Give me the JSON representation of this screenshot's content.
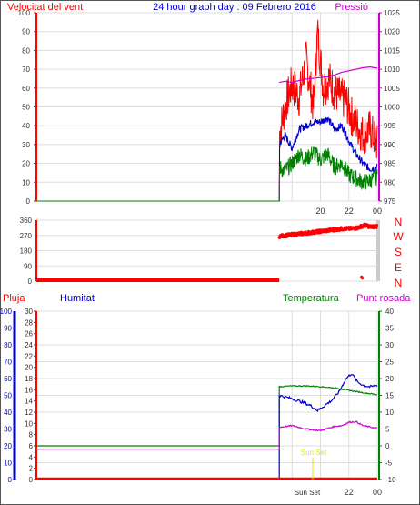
{
  "header": {
    "title": "24 hour graph day : 09 Febrero 2016",
    "wind_label": "Velocitat del vent",
    "pressure_label": "Pressió"
  },
  "panel2": {
    "compass_labels": [
      "N",
      "W",
      "S",
      "E",
      "N"
    ]
  },
  "panel3": {
    "rain_label": "Pluja",
    "humidity_label": "Humitat",
    "temperature_label": "Temperatura",
    "dewpoint_label": "Punt rosada",
    "sunset_annotation": "Sun Set"
  },
  "colors": {
    "wind_gust": "#ff0000",
    "wind_avg": "#008000",
    "wind_axis": "#ff0000",
    "pressure": "#cc00cc",
    "title": "#0000cc",
    "humidity": "#0000cc",
    "temperature": "#008000",
    "dewpoint": "#cc00cc",
    "rain": "#ff0000",
    "direction": "#ff0000",
    "sunset": "#e6e600"
  },
  "chart_data": [
    {
      "type": "line",
      "x_ticks": [
        "20",
        "22",
        "00"
      ],
      "y_left": {
        "label": "Velocitat del vent",
        "range": [
          0,
          100
        ],
        "ticks": [
          0,
          10,
          20,
          30,
          40,
          50,
          60,
          70,
          80,
          90,
          100
        ]
      },
      "y_right": {
        "label": "Pressió",
        "range": [
          975,
          1025
        ],
        "ticks": [
          975,
          980,
          985,
          990,
          995,
          1000,
          1005,
          1010,
          1015,
          1020,
          1025
        ]
      },
      "grid": true,
      "series": [
        {
          "name": "Velocitat del vent",
          "axis": "left",
          "points": [
            [
              0,
              0
            ],
            [
              17.1,
              0
            ],
            [
              17.1,
              35
            ],
            [
              17.5,
              50
            ],
            [
              18.0,
              62
            ],
            [
              18.5,
              55
            ],
            [
              19.0,
              75
            ],
            [
              19.5,
              50
            ],
            [
              19.8,
              90
            ],
            [
              20.2,
              60
            ],
            [
              20.6,
              65
            ],
            [
              21.0,
              58
            ],
            [
              21.4,
              55
            ],
            [
              21.8,
              53
            ],
            [
              22.2,
              45
            ],
            [
              22.6,
              40
            ],
            [
              23.0,
              35
            ],
            [
              23.5,
              38
            ],
            [
              24.0,
              30
            ]
          ]
        },
        {
          "axis": "left",
          "points": [
            [
              0,
              0
            ],
            [
              17.1,
              0
            ],
            [
              17.1,
              30
            ],
            [
              17.5,
              35
            ],
            [
              18.0,
              28
            ],
            [
              18.5,
              38
            ],
            [
              19.0,
              40
            ],
            [
              19.5,
              42
            ],
            [
              20.0,
              42
            ],
            [
              20.5,
              44
            ],
            [
              21.0,
              38
            ],
            [
              21.5,
              40
            ],
            [
              22.0,
              32
            ],
            [
              22.5,
              25
            ],
            [
              23.0,
              20
            ],
            [
              23.5,
              17
            ],
            [
              24.0,
              18
            ]
          ]
        },
        {
          "axis": "left",
          "points": [
            [
              0,
              0
            ],
            [
              17.1,
              0
            ],
            [
              17.1,
              18
            ],
            [
              17.5,
              16
            ],
            [
              18.0,
              20
            ],
            [
              18.5,
              25
            ],
            [
              19.0,
              22
            ],
            [
              19.5,
              26
            ],
            [
              20.0,
              22
            ],
            [
              20.5,
              25
            ],
            [
              21.0,
              18
            ],
            [
              21.5,
              20
            ],
            [
              22.0,
              14
            ],
            [
              22.5,
              12
            ],
            [
              23.0,
              10
            ],
            [
              23.5,
              11
            ],
            [
              24.0,
              13
            ]
          ]
        },
        {
          "name": "Pressió",
          "axis": "right",
          "points": [
            [
              17.1,
              1006.5
            ],
            [
              17.5,
              1006.8
            ],
            [
              18.0,
              1006.5
            ],
            [
              18.5,
              1007.0
            ],
            [
              19.0,
              1007.4
            ],
            [
              19.5,
              1007.6
            ],
            [
              20.0,
              1007.8
            ],
            [
              20.5,
              1008.0
            ],
            [
              21.0,
              1008.5
            ],
            [
              21.5,
              1009.2
            ],
            [
              22.0,
              1009.6
            ],
            [
              22.5,
              1010.0
            ],
            [
              23.0,
              1010.4
            ],
            [
              23.5,
              1010.6
            ],
            [
              24.0,
              1010.3
            ]
          ]
        }
      ]
    },
    {
      "type": "scatter",
      "y_left": {
        "range": [
          0,
          360
        ],
        "ticks": [
          0,
          90,
          180,
          270,
          360
        ]
      },
      "grid": true,
      "series": [
        {
          "axis": "left",
          "points": [
            [
              0,
              0
            ],
            [
              1,
              0
            ],
            [
              2,
              0
            ],
            [
              3,
              0
            ],
            [
              4,
              0
            ],
            [
              5,
              0
            ],
            [
              6,
              0
            ],
            [
              7,
              0
            ],
            [
              8,
              0
            ],
            [
              9,
              0
            ],
            [
              10,
              0
            ],
            [
              11,
              0
            ],
            [
              12,
              0
            ],
            [
              13,
              0
            ],
            [
              14,
              0
            ],
            [
              15,
              0
            ],
            [
              16,
              0
            ],
            [
              17,
              0
            ],
            [
              17.1,
              265
            ],
            [
              17.6,
              270
            ],
            [
              18.1,
              275
            ],
            [
              18.6,
              280
            ],
            [
              19.1,
              285
            ],
            [
              19.6,
              290
            ],
            [
              20.1,
              295
            ],
            [
              20.6,
              300
            ],
            [
              21.1,
              305
            ],
            [
              21.6,
              310
            ],
            [
              22.1,
              310
            ],
            [
              22.6,
              315
            ],
            [
              22.9,
              30
            ],
            [
              23.1,
              330
            ],
            [
              23.6,
              320
            ],
            [
              24.0,
              325
            ]
          ]
        }
      ]
    },
    {
      "type": "line",
      "y_left": {
        "label": "Humitat",
        "range": [
          0,
          100
        ],
        "ticks": [
          0,
          10,
          20,
          30,
          40,
          50,
          60,
          70,
          80,
          90,
          100
        ]
      },
      "y_left2": {
        "label": "Pluja",
        "range": [
          0,
          30
        ],
        "ticks": [
          0,
          2,
          4,
          6,
          8,
          10,
          12,
          14,
          16,
          18,
          20,
          22,
          24,
          26,
          28,
          30
        ]
      },
      "y_right": {
        "label": "Temperatura",
        "range": [
          -10,
          40
        ],
        "ticks": [
          -10,
          -5,
          0,
          5,
          10,
          15,
          20,
          25,
          30,
          35,
          40
        ]
      },
      "grid": true,
      "series": [
        {
          "name": "Temperatura",
          "axis": "right",
          "points": [
            [
              0,
              0
            ],
            [
              17.1,
              0
            ],
            [
              17.1,
              17.6
            ],
            [
              18.0,
              17.8
            ],
            [
              19.0,
              17.8
            ],
            [
              20.0,
              17.6
            ],
            [
              21.0,
              17.2
            ],
            [
              22.0,
              16.5
            ],
            [
              23.0,
              15.8
            ],
            [
              24.0,
              15.2
            ]
          ]
        },
        {
          "name": "Humitat",
          "axis": "left",
          "points": [
            [
              0,
              0
            ],
            [
              17.1,
              0
            ],
            [
              17.1,
              50
            ],
            [
              18.0,
              48
            ],
            [
              18.7,
              46
            ],
            [
              19.3,
              44
            ],
            [
              19.8,
              41
            ],
            [
              20.3,
              44
            ],
            [
              20.8,
              47
            ],
            [
              21.3,
              52
            ],
            [
              21.8,
              60
            ],
            [
              22.2,
              63
            ],
            [
              22.6,
              58
            ],
            [
              23.0,
              56
            ],
            [
              23.5,
              55
            ],
            [
              24.0,
              56
            ]
          ]
        },
        {
          "name": "Punt rosada",
          "axis": "right",
          "points": [
            [
              0,
              -1
            ],
            [
              17.1,
              -1
            ],
            [
              17.1,
              5.5
            ],
            [
              18.0,
              6.0
            ],
            [
              19.0,
              5.0
            ],
            [
              20.0,
              4.5
            ],
            [
              21.0,
              5.8
            ],
            [
              21.5,
              6.0
            ],
            [
              22.0,
              7.0
            ],
            [
              22.5,
              7.2
            ],
            [
              23.0,
              6.0
            ],
            [
              24.0,
              5.2
            ]
          ]
        },
        {
          "name": "Pluja",
          "axis": "left2",
          "points": [
            [
              0,
              0
            ],
            [
              24.0,
              0
            ]
          ]
        }
      ]
    }
  ]
}
